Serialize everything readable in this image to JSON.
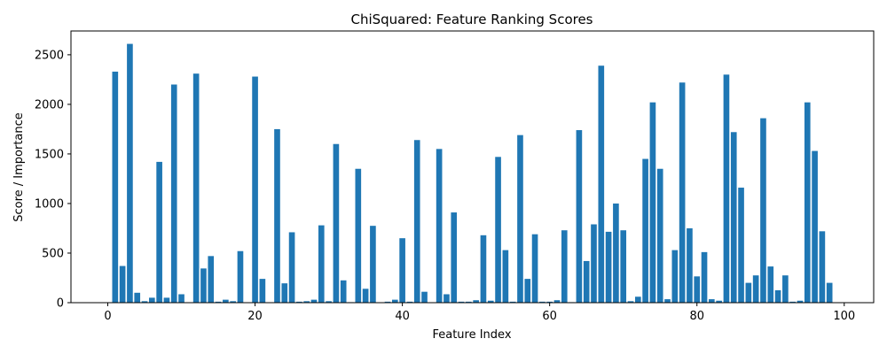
{
  "chart_data": {
    "type": "bar",
    "title": "ChiSquared: Feature Ranking Scores",
    "xlabel": "Feature Index",
    "ylabel": "Score / Importance",
    "xlim": [
      -5,
      104
    ],
    "ylim": [
      0,
      2740
    ],
    "xticks": [
      0,
      20,
      40,
      60,
      80,
      100
    ],
    "yticks": [
      0,
      500,
      1000,
      1500,
      2000,
      2500
    ],
    "bar_color": "#1f77b4",
    "grid": false,
    "x": [
      0,
      1,
      2,
      3,
      4,
      5,
      6,
      7,
      8,
      9,
      10,
      11,
      12,
      13,
      14,
      15,
      16,
      17,
      18,
      19,
      20,
      21,
      22,
      23,
      24,
      25,
      26,
      27,
      28,
      29,
      30,
      31,
      32,
      33,
      34,
      35,
      36,
      37,
      38,
      39,
      40,
      41,
      42,
      43,
      44,
      45,
      46,
      47,
      48,
      49,
      50,
      51,
      52,
      53,
      54,
      55,
      56,
      57,
      58,
      59,
      60,
      61,
      62,
      63,
      64,
      65,
      66,
      67,
      68,
      69,
      70,
      71,
      72,
      73,
      74,
      75,
      76,
      77,
      78,
      79,
      80,
      81,
      82,
      83,
      84,
      85,
      86,
      87,
      88,
      89,
      90,
      91,
      92,
      93,
      94,
      95,
      96,
      97,
      98,
      99
    ],
    "values": [
      0,
      2330,
      370,
      2610,
      100,
      15,
      50,
      1420,
      50,
      2200,
      85,
      0,
      2310,
      345,
      470,
      10,
      30,
      15,
      520,
      0,
      2280,
      240,
      0,
      1750,
      195,
      710,
      10,
      15,
      30,
      780,
      15,
      1600,
      225,
      5,
      1350,
      140,
      775,
      0,
      10,
      30,
      650,
      10,
      1640,
      110,
      0,
      1550,
      85,
      910,
      10,
      10,
      25,
      680,
      20,
      1470,
      530,
      10,
      1690,
      240,
      690,
      10,
      10,
      25,
      730,
      5,
      1740,
      420,
      790,
      2390,
      715,
      1000,
      730,
      15,
      60,
      1450,
      2020,
      1350,
      35,
      530,
      2220,
      750,
      265,
      510,
      35,
      20,
      2300,
      1720,
      1160,
      200,
      275,
      1860,
      365,
      125,
      275,
      10,
      20,
      2020,
      1530,
      720,
      200,
      0
    ]
  }
}
